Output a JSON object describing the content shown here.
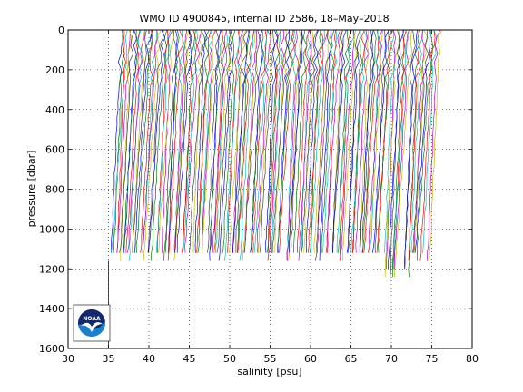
{
  "chart_data": {
    "type": "line",
    "title": "WMO ID 4900845, internal ID 2586, 18–May–2018",
    "xlabel": "salinity [psu]",
    "ylabel": "pressure [dbar]",
    "xlim": [
      30,
      80
    ],
    "ylim": [
      0,
      1600
    ],
    "y_reversed": true,
    "x_ticks": [
      30,
      35,
      40,
      45,
      50,
      55,
      60,
      65,
      70,
      75,
      80
    ],
    "y_ticks": [
      0,
      200,
      400,
      600,
      800,
      1000,
      1200,
      1400,
      1600
    ],
    "grid": true,
    "profile_series": {
      "description_note": "",
      "count": 160,
      "x_offset_first": 36.6,
      "x_offset_last": 76.0,
      "surface_pressure": 0,
      "bottom_pressure_typical": 1140,
      "bottom_pressure_deep": 1260,
      "colors": [
        "#0000ff",
        "#008000",
        "#ff0000",
        "#00bfbf",
        "#bf00bf",
        "#bfbf00",
        "#404040"
      ]
    },
    "first_profile": {
      "x": [
        35.0,
        35.0,
        35.0,
        35.0,
        35.0
      ],
      "y": [
        1160,
        1200,
        1300,
        1400,
        1600
      ]
    }
  },
  "logo": {
    "text": "NOAA",
    "colors": {
      "navy": "#14286e",
      "blue": "#1a7fd0",
      "white": "#ffffff"
    }
  }
}
